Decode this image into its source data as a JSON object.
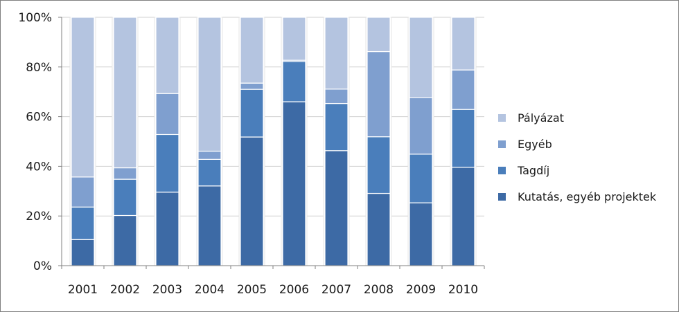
{
  "chart_data": {
    "type": "bar",
    "stacked": true,
    "percent": true,
    "title": "",
    "xlabel": "",
    "ylabel": "",
    "ylim": [
      0,
      100
    ],
    "y_ticks": [
      "0%",
      "20%",
      "40%",
      "60%",
      "80%",
      "100%"
    ],
    "grid": "horizontal",
    "legend_position": "right",
    "categories": [
      "2001",
      "2002",
      "2003",
      "2004",
      "2005",
      "2006",
      "2007",
      "2008",
      "2009",
      "2010"
    ],
    "series": [
      {
        "name": "Kutatás, egyéb projektek",
        "color": "#3d6aa5",
        "values": [
          10.5,
          20.2,
          29.6,
          32.1,
          51.8,
          66,
          46.3,
          29.1,
          25.3,
          39.6
        ]
      },
      {
        "name": "Tagdíj",
        "color": "#4a7ebb",
        "values": [
          13.1,
          14.6,
          23.2,
          10.7,
          19.2,
          16.2,
          19,
          22.8,
          19.6,
          23.3
        ]
      },
      {
        "name": "Egyéb",
        "color": "#7f9fcf",
        "values": [
          12.1,
          4.6,
          16.5,
          3.3,
          2.5,
          0.5,
          5.8,
          34.3,
          22.8,
          15.9
        ]
      },
      {
        "name": "Pályázat",
        "color": "#b4c4e0",
        "values": [
          64.3,
          60.6,
          30.7,
          53.9,
          26.5,
          17.3,
          28.9,
          13.8,
          32.3,
          21.2
        ]
      }
    ]
  }
}
